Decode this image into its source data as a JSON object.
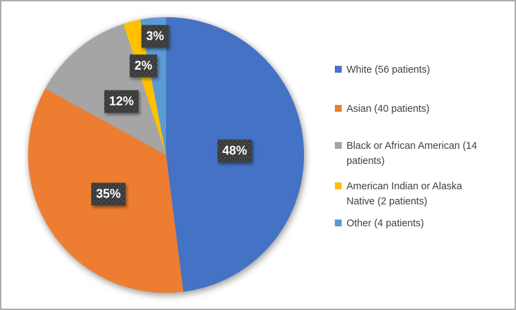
{
  "chart_data": {
    "type": "pie",
    "legend_position": "right",
    "start_angle_deg": 0,
    "direction": "clockwise",
    "slices": [
      {
        "category": "White",
        "patients": 56,
        "percent": 48,
        "percent_label": "48%",
        "legend_label": "White (56 patients)",
        "color": "#4472C4"
      },
      {
        "category": "Asian",
        "patients": 40,
        "percent": 35,
        "percent_label": "35%",
        "legend_label": "Asian (40 patients)",
        "color": "#ED7D31"
      },
      {
        "category": "Black or African American",
        "patients": 14,
        "percent": 12,
        "percent_label": "12%",
        "legend_label": "Black or African American (14 patients)",
        "color": "#A5A5A5"
      },
      {
        "category": "American Indian or Alaska Native",
        "patients": 2,
        "percent": 2,
        "percent_label": "2%",
        "legend_label": "American Indian or Alaska Native (2 patients)",
        "color": "#FFC000"
      },
      {
        "category": "Other",
        "patients": 4,
        "percent": 3,
        "percent_label": "3%",
        "legend_label": "Other (4 patients)",
        "color": "#5B9BD5"
      }
    ]
  }
}
